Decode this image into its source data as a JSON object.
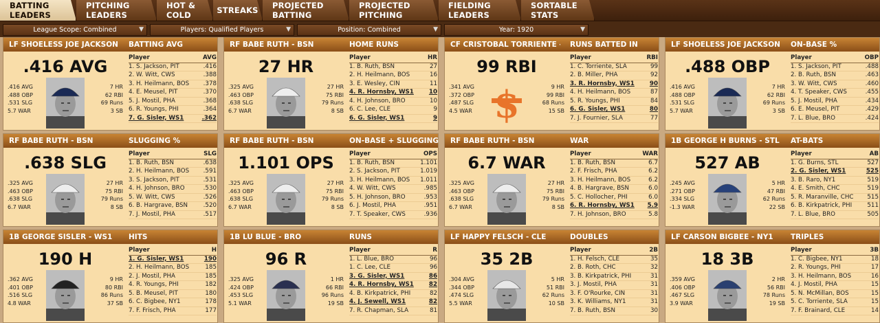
{
  "tabs": [
    "BATTING LEADERS",
    "PITCHING LEADERS",
    "HOT & COLD",
    "STREAKS",
    "PROJECTED BATTING",
    "PROJECTED PITCHING",
    "FIELDING LEADERS",
    "SORTABLE STATS"
  ],
  "filters": [
    "League Scope: Combined",
    "Players: Qualified Players",
    "Position: Combined",
    "Year: 1920"
  ],
  "player_header": "Player",
  "cards": [
    {
      "pos_name": "LF SHOELESS JOE JACKSON - PIT",
      "stat": "BATTING AVG",
      "value": ".416 AVG",
      "abbr": "AVG",
      "left": [
        ".416 AVG",
        ".488 OBP",
        ".531 SLG",
        "5.7 WAR"
      ],
      "right": [
        "7 HR",
        "62 RBI",
        "69 Runs",
        "3 SB"
      ],
      "rows": [
        [
          "1. S. Jackson, PIT",
          ".416"
        ],
        [
          "2. W. Witt, CWS",
          ".388"
        ],
        [
          "3. H. Heilmann, BOS",
          ".378"
        ],
        [
          "4. E. Meusel, PIT",
          ".370"
        ],
        [
          "5. J. Mostil, PHA",
          ".368"
        ],
        [
          "6. R. Youngs, PHI",
          ".364"
        ],
        [
          "7. G. Sisler, WS1",
          ".362"
        ]
      ],
      "hl": [
        6
      ]
    },
    {
      "pos_name": "RF BABE RUTH - BSN",
      "stat": "HOME RUNS",
      "value": "27 HR",
      "abbr": "HR",
      "left": [
        ".325 AVG",
        ".463 OBP",
        ".638 SLG",
        "6.7 WAR"
      ],
      "right": [
        "27 HR",
        "75 RBI",
        "79 Runs",
        "8 SB"
      ],
      "rows": [
        [
          "1. B. Ruth, BSN",
          "27"
        ],
        [
          "2. H. Heilmann, BOS",
          "16"
        ],
        [
          "3. E. Wesley, CIN",
          "11"
        ],
        [
          "4. R. Hornsby, WS1",
          "10"
        ],
        [
          "4. H. Johnson, BRO",
          "10"
        ],
        [
          "6. C. Lee, CLE",
          "9"
        ],
        [
          "6. G. Sisler, WS1",
          "9"
        ]
      ],
      "hl": [
        3,
        6
      ]
    },
    {
      "pos_name": "CF CRISTOBAL TORRIENTE - SLA",
      "stat": "RUNS BATTED IN",
      "value": "99 RBI",
      "abbr": "RBI",
      "left": [
        ".341 AVG",
        ".372 OBP",
        ".487 SLG",
        "4.5 WAR"
      ],
      "right": [
        "9 HR",
        "99 RBI",
        "68 Runs",
        "15 SB"
      ],
      "rows": [
        [
          "1. C. Torriente, SLA",
          "99"
        ],
        [
          "2. B. Miller, PHA",
          "92"
        ],
        [
          "3. R. Hornsby, WS1",
          "90"
        ],
        [
          "4. H. Heilmann, BOS",
          "87"
        ],
        [
          "5. R. Youngs, PHI",
          "84"
        ],
        [
          "6. G. Sisler, WS1",
          "80"
        ],
        [
          "7. J. Fournier, SLA",
          "77"
        ]
      ],
      "hl": [
        2,
        5
      ]
    },
    {
      "pos_name": "LF SHOELESS JOE JACKSON - PIT",
      "stat": "ON-BASE %",
      "value": ".488 OBP",
      "abbr": "OBP",
      "left": [
        ".416 AVG",
        ".488 OBP",
        ".531 SLG",
        "5.7 WAR"
      ],
      "right": [
        "7 HR",
        "62 RBI",
        "69 Runs",
        "3 SB"
      ],
      "rows": [
        [
          "1. S. Jackson, PIT",
          ".488"
        ],
        [
          "2. B. Ruth, BSN",
          ".463"
        ],
        [
          "3. W. Witt, CWS",
          ".460"
        ],
        [
          "4. T. Speaker, CWS",
          ".455"
        ],
        [
          "5. J. Mostil, PHA",
          ".434"
        ],
        [
          "6. E. Meusel, PIT",
          ".429"
        ],
        [
          "7. L. Blue, BRO",
          ".424"
        ]
      ],
      "hl": []
    },
    {
      "pos_name": "RF BABE RUTH - BSN",
      "stat": "SLUGGING %",
      "value": ".638 SLG",
      "abbr": "SLG",
      "left": [
        ".325 AVG",
        ".463 OBP",
        ".638 SLG",
        "6.7 WAR"
      ],
      "right": [
        "27 HR",
        "75 RBI",
        "79 Runs",
        "8 SB"
      ],
      "rows": [
        [
          "1. B. Ruth, BSN",
          ".638"
        ],
        [
          "2. H. Heilmann, BOS",
          ".591"
        ],
        [
          "3. S. Jackson, PIT",
          ".531"
        ],
        [
          "4. H. Johnson, BRO",
          ".530"
        ],
        [
          "5. W. Witt, CWS",
          ".526"
        ],
        [
          "6. B. Hargrave, BSN",
          ".520"
        ],
        [
          "7. J. Mostil, PHA",
          ".517"
        ]
      ],
      "hl": []
    },
    {
      "pos_name": "RF BABE RUTH - BSN",
      "stat": "ON-BASE + SLUGGING",
      "value": "1.101 OPS",
      "abbr": "OPS",
      "left": [
        ".325 AVG",
        ".463 OBP",
        ".638 SLG",
        "6.7 WAR"
      ],
      "right": [
        "27 HR",
        "75 RBI",
        "79 Runs",
        "8 SB"
      ],
      "rows": [
        [
          "1. B. Ruth, BSN",
          "1.101"
        ],
        [
          "2. S. Jackson, PIT",
          "1.019"
        ],
        [
          "3. H. Heilmann, BOS",
          "1.011"
        ],
        [
          "4. W. Witt, CWS",
          ".985"
        ],
        [
          "5. H. Johnson, BRO",
          ".953"
        ],
        [
          "6. J. Mostil, PHA",
          ".951"
        ],
        [
          "7. T. Speaker, CWS",
          ".936"
        ]
      ],
      "hl": []
    },
    {
      "pos_name": "RF BABE RUTH - BSN",
      "stat": "WAR",
      "value": "6.7 WAR",
      "abbr": "WAR",
      "left": [
        ".325 AVG",
        ".463 OBP",
        ".638 SLG",
        "6.7 WAR"
      ],
      "right": [
        "27 HR",
        "75 RBI",
        "79 Runs",
        "8 SB"
      ],
      "rows": [
        [
          "1. B. Ruth, BSN",
          "6.7"
        ],
        [
          "2. F. Frisch, PHA",
          "6.2"
        ],
        [
          "3. H. Heilmann, BOS",
          "6.2"
        ],
        [
          "4. B. Hargrave, BSN",
          "6.0"
        ],
        [
          "5. C. Hollocher, PHI",
          "6.0"
        ],
        [
          "6. R. Hornsby, WS1",
          "5.9"
        ],
        [
          "7. H. Johnson, BRO",
          "5.8"
        ]
      ],
      "hl": [
        5
      ]
    },
    {
      "pos_name": "1B GEORGE H BURNS - STL",
      "stat": "AT-BATS",
      "value": "527 AB",
      "abbr": "AB",
      "left": [
        ".245 AVG",
        ".271 OBP",
        ".334 SLG",
        "-1.3 WAR"
      ],
      "right": [
        "5 HR",
        "47 RBI",
        "62 Runs",
        "22 SB"
      ],
      "rows": [
        [
          "1. G. Burns, STL",
          "527"
        ],
        [
          "2. G. Sisler, WS1",
          "525"
        ],
        [
          "3. B. Raro, NY1",
          "519"
        ],
        [
          "4. E. Smith, CHC",
          "519"
        ],
        [
          "5. R. Maranville, CHC",
          "515"
        ],
        [
          "6. B. Kirkpatrick, PHI",
          "511"
        ],
        [
          "7. L. Blue, BRO",
          "505"
        ]
      ],
      "hl": [
        1
      ]
    },
    {
      "pos_name": "1B GEORGE SISLER - WS1",
      "stat": "HITS",
      "value": "190 H",
      "abbr": "H",
      "left": [
        ".362 AVG",
        ".401 OBP",
        ".516 SLG",
        "4.8 WAR"
      ],
      "right": [
        "9 HR",
        "80 RBI",
        "86 Runs",
        "37 SB"
      ],
      "rows": [
        [
          "1. G. Sisler, WS1",
          "190"
        ],
        [
          "2. H. Heilmann, BOS",
          "185"
        ],
        [
          "2. J. Mostil, PHA",
          "185"
        ],
        [
          "4. R. Youngs, PHI",
          "182"
        ],
        [
          "5. B. Meusel, PIT",
          "180"
        ],
        [
          "6. C. Bigbee, NY1",
          "178"
        ],
        [
          "7. F. Frisch, PHA",
          "177"
        ]
      ],
      "hl": [
        0
      ]
    },
    {
      "pos_name": "1B LU BLUE - BRO",
      "stat": "RUNS",
      "value": "96 R",
      "abbr": "R",
      "left": [
        ".325 AVG",
        ".424 OBP",
        ".453 SLG",
        "5.1 WAR"
      ],
      "right": [
        "1 HR",
        "66 RBI",
        "96 Runs",
        "19 SB"
      ],
      "rows": [
        [
          "1. L. Blue, BRO",
          "96"
        ],
        [
          "1. C. Lee, CLE",
          "96"
        ],
        [
          "3. G. Sisler, WS1",
          "86"
        ],
        [
          "4. R. Hornsby, WS1",
          "82"
        ],
        [
          "4. B. Kirkpatrick, PHI",
          "82"
        ],
        [
          "4. J. Sewell, WS1",
          "82"
        ],
        [
          "7. R. Chapman, SLA",
          "81"
        ]
      ],
      "hl": [
        2,
        3,
        5
      ]
    },
    {
      "pos_name": "LF HAPPY FELSCH - CLE",
      "stat": "DOUBLES",
      "value": "35 2B",
      "abbr": "2B",
      "left": [
        ".304 AVG",
        ".344 OBP",
        ".474 SLG",
        "5.5 WAR"
      ],
      "right": [
        "5 HR",
        "51 RBI",
        "62 Runs",
        "10 SB"
      ],
      "rows": [
        [
          "1. H. Felsch, CLE",
          "35"
        ],
        [
          "2. B. Roth, CHC",
          "32"
        ],
        [
          "3. B. Kirkpatrick, PHI",
          "31"
        ],
        [
          "3. J. Mostil, PHA",
          "31"
        ],
        [
          "3. F. O'Rourke, CIN",
          "31"
        ],
        [
          "3. K. Williams, NY1",
          "31"
        ],
        [
          "7. B. Ruth, BSN",
          "30"
        ]
      ],
      "hl": []
    },
    {
      "pos_name": "LF CARSON BIGBEE - NY1",
      "stat": "TRIPLES",
      "value": "18 3B",
      "abbr": "3B",
      "left": [
        ".359 AVG",
        ".406 OBP",
        ".467 SLG",
        "3.9 WAR"
      ],
      "right": [
        "2 HR",
        "56 RBI",
        "78 Runs",
        "19 SB"
      ],
      "rows": [
        [
          "1. C. Bigbee, NY1",
          "18"
        ],
        [
          "2. R. Youngs, PHI",
          "17"
        ],
        [
          "3. H. Heilmann, BOS",
          "16"
        ],
        [
          "4. J. Mostil, PHA",
          "15"
        ],
        [
          "5. N. McMillan, BOS",
          "15"
        ],
        [
          "5. C. Torriente, SLA",
          "15"
        ],
        [
          "7. F. Brainard, CLE",
          "14"
        ]
      ],
      "hl": []
    }
  ]
}
